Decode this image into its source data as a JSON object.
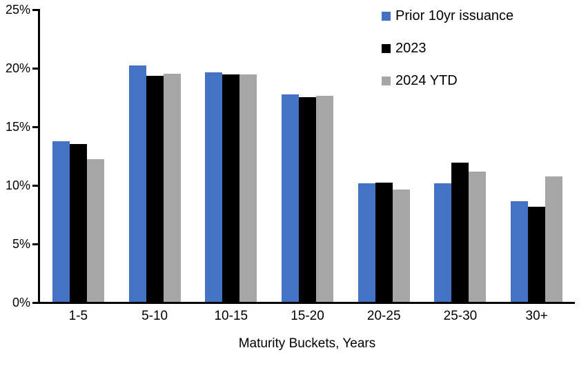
{
  "chart_data": {
    "type": "bar",
    "title": "",
    "xlabel": "Maturity Buckets, Years",
    "ylabel": "",
    "categories": [
      "1-5",
      "5-10",
      "10-15",
      "15-20",
      "20-25",
      "25-30",
      "30+"
    ],
    "series": [
      {
        "name": "Prior 10yr issuance",
        "color": "#4472C4",
        "values": [
          13.7,
          20.2,
          19.6,
          17.7,
          10.1,
          10.1,
          8.6
        ]
      },
      {
        "name": "2023",
        "color": "#000000",
        "values": [
          13.5,
          19.3,
          19.4,
          17.5,
          10.2,
          11.9,
          8.1
        ]
      },
      {
        "name": "2024 YTD",
        "color": "#A6A6A6",
        "values": [
          12.2,
          19.5,
          19.4,
          17.6,
          9.6,
          11.1,
          10.7
        ]
      }
    ],
    "ylim": [
      0,
      25
    ],
    "ytick_step": 5,
    "yticks": [
      "0%",
      "5%",
      "10%",
      "15%",
      "20%",
      "25%"
    ],
    "legend_position": "top-right",
    "grid": false,
    "axis_color": "#000000",
    "background_color": "#FFFFFF"
  }
}
